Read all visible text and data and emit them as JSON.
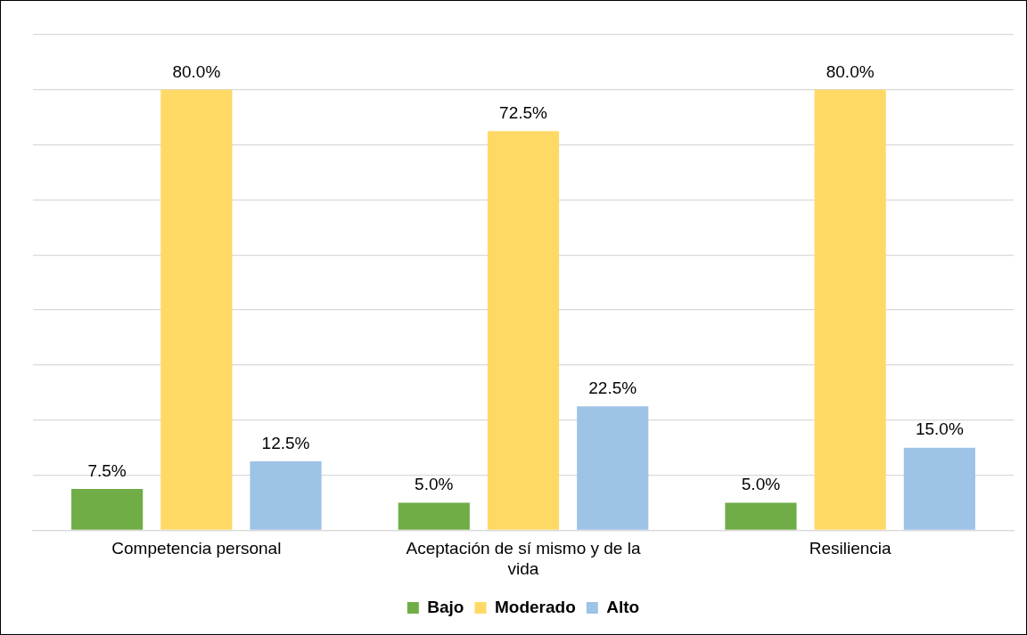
{
  "chart_data": {
    "type": "bar",
    "categories": [
      "Competencia personal",
      "Aceptación de sí mismo y de la vida",
      "Resiliencia"
    ],
    "series": [
      {
        "name": "Bajo",
        "color": "#70ad47",
        "values": [
          7.5,
          5.0,
          5.0
        ],
        "value_labels": [
          "7.5%",
          "5.0%",
          "5.0%"
        ]
      },
      {
        "name": "Moderado",
        "color": "#ffd966",
        "values": [
          80.0,
          72.5,
          80.0
        ],
        "value_labels": [
          "80.0%",
          "72.5%",
          "80.0%"
        ]
      },
      {
        "name": "Alto",
        "color": "#9dc3e6",
        "values": [
          12.5,
          22.5,
          15.0
        ],
        "value_labels": [
          "12.5%",
          "22.5%",
          "15.0%"
        ]
      }
    ],
    "ylim": [
      0,
      90
    ],
    "yticks": [
      {
        "value": 0,
        "label": null
      },
      {
        "value": 10,
        "label": null
      },
      {
        "value": 20,
        "label": null
      },
      {
        "value": 30,
        "label": null
      },
      {
        "value": 40,
        "label": null
      },
      {
        "value": 50,
        "label": null
      },
      {
        "value": 60,
        "label": null
      },
      {
        "value": 70,
        "label": null
      },
      {
        "value": 80,
        "label": null
      },
      {
        "value": 90,
        "label": null
      }
    ],
    "tick_labels": "x",
    "grid": "y",
    "legend": "bottom"
  }
}
